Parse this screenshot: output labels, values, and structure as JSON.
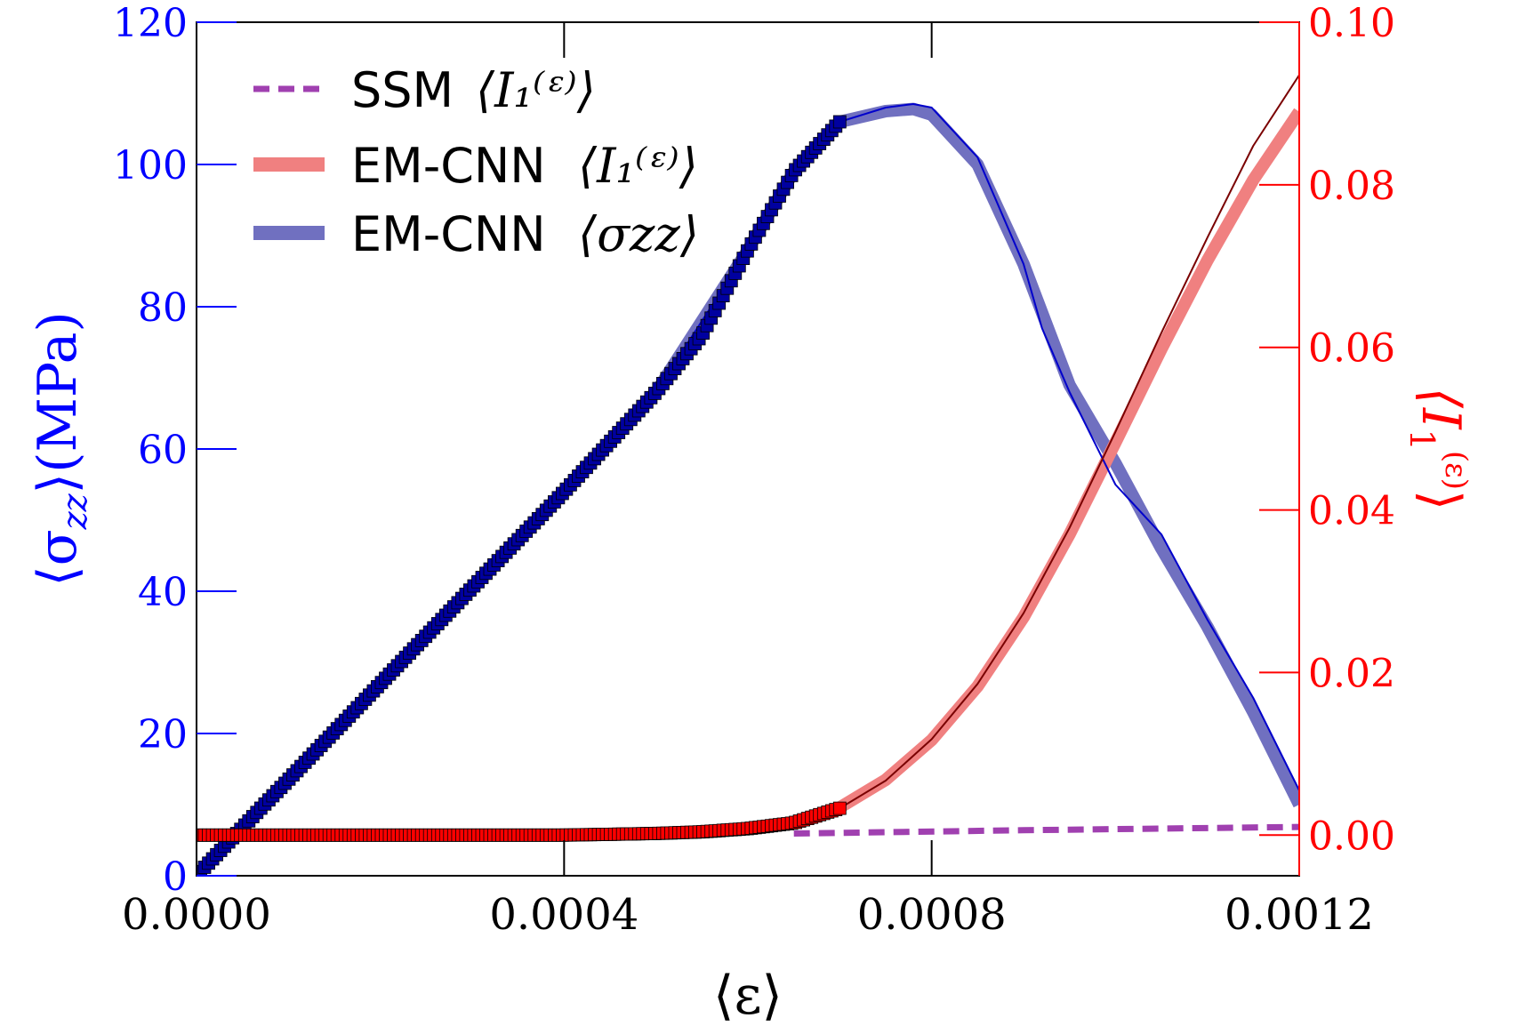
{
  "chart_data": {
    "type": "line",
    "title": "",
    "xlabel": "⟨ε⟩",
    "ylabel_left": {
      "prefix": "⟨σ",
      "sub": "zz",
      "suffix": "⟩(MPa)"
    },
    "ylabel_right": {
      "prefix": "⟨I",
      "sub": "1",
      "sup": "(ε)",
      "suffix": "⟩"
    },
    "xlim": [
      0,
      0.0012
    ],
    "ylim_left": [
      0,
      120
    ],
    "ylim_right": [
      -0.005,
      0.1
    ],
    "x_ticks": [
      "0.0000",
      "0.0004",
      "0.0008",
      "0.0012"
    ],
    "y_left_ticks": [
      "0",
      "20",
      "40",
      "60",
      "80",
      "100",
      "120"
    ],
    "y_right_ticks": [
      "0.00",
      "0.02",
      "0.04",
      "0.06",
      "0.08",
      "0.10"
    ],
    "legend_position": "top-left",
    "legend": [
      {
        "label": "SSM",
        "math": "⟨I₁⁽ᵋ⁾⟩",
        "color": "#a040b0",
        "style": "dashed"
      },
      {
        "label": "EM-CNN",
        "math": "⟨I₁⁽ᵋ⁾⟩",
        "color": "#f08080",
        "style": "thick"
      },
      {
        "label": "EM-CNN",
        "math": "⟨σzz⟩",
        "color": "#7070c0",
        "style": "thick"
      }
    ],
    "series": [
      {
        "name": "SSM ⟨σzz⟩ markers",
        "axis": "left",
        "style": "markers",
        "color": "#0000a0",
        "x": [
          0,
          7e-05,
          0.0001,
          0.0002,
          0.0003,
          0.0004,
          0.0005,
          0.00055,
          0.0006,
          0.00065,
          0.0007
        ],
        "y": [
          0,
          9.5,
          13.5,
          27,
          40.5,
          54,
          68,
          76,
          88,
          99,
          106
        ]
      },
      {
        "name": "SSM ⟨σzz⟩",
        "axis": "left",
        "style": "thin",
        "color": "#0000cc",
        "x": [
          0,
          0.0002,
          0.0004,
          0.0005,
          0.0006,
          0.00065,
          0.0007,
          0.00075,
          0.00078,
          0.0008,
          0.00085,
          0.0009,
          0.00092,
          0.00095,
          0.001,
          0.00105,
          0.0011,
          0.00115,
          0.0012
        ],
        "y": [
          0,
          27,
          54,
          68,
          88,
          99,
          106,
          108,
          108.5,
          108,
          101,
          86,
          77,
          68,
          55,
          48,
          36,
          25,
          12
        ]
      },
      {
        "name": "EM-CNN ⟨σzz⟩",
        "axis": "left",
        "style": "thick",
        "color": "#7070c0",
        "x": [
          0,
          0.0002,
          0.0004,
          0.0005,
          0.0006,
          0.00065,
          0.0007,
          0.00075,
          0.00078,
          0.0008,
          0.00085,
          0.0009,
          0.00095,
          0.001,
          0.00105,
          0.0011,
          0.00115,
          0.0012
        ],
        "y": [
          0,
          27,
          54,
          68,
          88,
          99,
          106,
          107.5,
          107.8,
          107,
          100,
          86,
          69,
          58,
          46,
          35,
          23,
          10
        ]
      },
      {
        "name": "SSM ⟨I1(ε)⟩ markers",
        "axis": "right",
        "style": "markers",
        "color": "#ff0000",
        "x": [
          0,
          0.0001,
          0.0002,
          0.0003,
          0.0004,
          0.00045,
          0.0005,
          0.00055,
          0.0006,
          0.00065,
          0.0007
        ],
        "y": [
          0,
          0,
          0,
          0,
          0,
          0.0001,
          0.0002,
          0.0004,
          0.0008,
          0.0015,
          0.0033
        ]
      },
      {
        "name": "SSM ⟨I1(ε)⟩",
        "axis": "right",
        "style": "thin",
        "color": "#7a0000",
        "x": [
          0.0006,
          0.00065,
          0.0007,
          0.00075,
          0.0008,
          0.00085,
          0.0009,
          0.00095,
          0.001,
          0.00105,
          0.0011,
          0.00115,
          0.0012
        ],
        "y": [
          0.0008,
          0.0015,
          0.0033,
          0.0067,
          0.0118,
          0.0186,
          0.0273,
          0.0378,
          0.0496,
          0.0618,
          0.0735,
          0.0848,
          0.0935
        ]
      },
      {
        "name": "EM-CNN ⟨I1(ε)⟩",
        "axis": "right",
        "style": "thick",
        "color": "#f08080",
        "x": [
          0.0006,
          0.00065,
          0.0007,
          0.00075,
          0.0008,
          0.00085,
          0.0009,
          0.00095,
          0.001,
          0.00105,
          0.0011,
          0.00115,
          0.0012
        ],
        "y": [
          0.0008,
          0.0015,
          0.0034,
          0.0068,
          0.0117,
          0.0183,
          0.0268,
          0.037,
          0.0483,
          0.0598,
          0.0707,
          0.0806,
          0.089
        ]
      },
      {
        "name": "SSM ⟨I1(ε)⟩ dashed",
        "axis": "right",
        "style": "dashed",
        "color": "#a040b0",
        "x": [
          0.00065,
          0.0009,
          0.0012
        ],
        "y": [
          0.0002,
          0.0006,
          0.001
        ]
      }
    ]
  }
}
